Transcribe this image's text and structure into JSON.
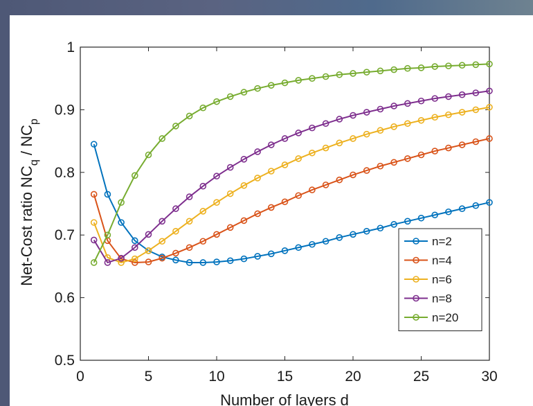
{
  "chart_data": {
    "type": "line",
    "xlabel": "Number of layers d",
    "ylabel": "Net-Cost ratio NC",
    "ylabel_sub1": "q",
    "ylabel_mid": " / NC",
    "ylabel_sub2": "p",
    "xlim": [
      0,
      30
    ],
    "ylim": [
      0.5,
      1
    ],
    "xticks": [
      0,
      5,
      10,
      15,
      20,
      25,
      30
    ],
    "xtick_labels": [
      "0",
      "5",
      "10",
      "15",
      "20",
      "25",
      "30"
    ],
    "yticks": [
      0.5,
      0.6,
      0.7,
      0.8,
      0.9,
      1
    ],
    "ytick_labels": [
      "0.5",
      "0.6",
      "0.7",
      "0.8",
      "0.9",
      "1"
    ],
    "grid": false,
    "legend_position": "lower-right",
    "x": [
      1,
      2,
      3,
      4,
      5,
      6,
      7,
      8,
      9,
      10,
      11,
      12,
      13,
      14,
      15,
      16,
      17,
      18,
      19,
      20,
      21,
      22,
      23,
      24,
      25,
      26,
      27,
      28,
      29,
      30
    ],
    "series": [
      {
        "name": "n=2",
        "color": "#0072BD",
        "values": [
          0.845,
          0.765,
          0.72,
          0.691,
          0.675,
          0.665,
          0.66,
          0.656,
          0.656,
          0.657,
          0.659,
          0.662,
          0.666,
          0.67,
          0.675,
          0.68,
          0.685,
          0.69,
          0.696,
          0.701,
          0.706,
          0.711,
          0.717,
          0.722,
          0.727,
          0.732,
          0.737,
          0.742,
          0.747,
          0.752
        ]
      },
      {
        "name": "n=4",
        "color": "#D95319",
        "values": [
          0.765,
          0.691,
          0.662,
          0.656,
          0.657,
          0.663,
          0.671,
          0.68,
          0.69,
          0.701,
          0.712,
          0.723,
          0.734,
          0.744,
          0.753,
          0.763,
          0.772,
          0.78,
          0.788,
          0.796,
          0.803,
          0.81,
          0.816,
          0.822,
          0.828,
          0.834,
          0.839,
          0.844,
          0.849,
          0.854
        ]
      },
      {
        "name": "n=6",
        "color": "#EDB120",
        "values": [
          0.72,
          0.664,
          0.656,
          0.662,
          0.675,
          0.69,
          0.706,
          0.722,
          0.738,
          0.752,
          0.766,
          0.779,
          0.791,
          0.802,
          0.812,
          0.822,
          0.831,
          0.839,
          0.847,
          0.854,
          0.861,
          0.867,
          0.873,
          0.878,
          0.883,
          0.888,
          0.892,
          0.896,
          0.9,
          0.904
        ]
      },
      {
        "name": "n=8",
        "color": "#7E2F8E",
        "values": [
          0.692,
          0.656,
          0.663,
          0.68,
          0.701,
          0.722,
          0.742,
          0.761,
          0.778,
          0.794,
          0.808,
          0.821,
          0.833,
          0.844,
          0.854,
          0.863,
          0.871,
          0.878,
          0.885,
          0.891,
          0.896,
          0.901,
          0.906,
          0.91,
          0.914,
          0.918,
          0.921,
          0.924,
          0.927,
          0.93
        ]
      },
      {
        "name": "n=20",
        "color": "#77AC30",
        "values": [
          0.656,
          0.7,
          0.752,
          0.795,
          0.828,
          0.854,
          0.874,
          0.89,
          0.903,
          0.913,
          0.921,
          0.928,
          0.934,
          0.939,
          0.943,
          0.947,
          0.95,
          0.953,
          0.956,
          0.958,
          0.96,
          0.962,
          0.964,
          0.966,
          0.967,
          0.969,
          0.97,
          0.971,
          0.972,
          0.973
        ]
      }
    ]
  }
}
